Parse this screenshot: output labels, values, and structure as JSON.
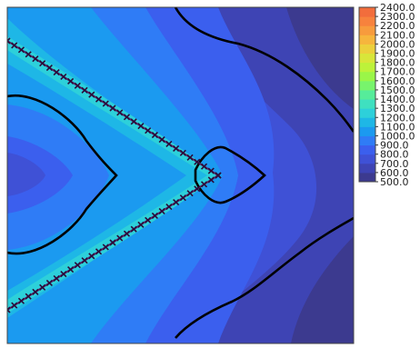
{
  "chart_data": {
    "type": "heatmap",
    "title": "",
    "xlabel": "",
    "ylabel": "",
    "axis_ticks_visible": false,
    "colorbar": {
      "placement": "right",
      "range": [
        500.0,
        2400.0
      ],
      "step": 100.0,
      "tick_labels": [
        "2400.0",
        "2300.0",
        "2200.0",
        "2100.0",
        "2000.0",
        "1900.0",
        "1800.0",
        "1700.0",
        "1600.0",
        "1500.0",
        "1400.0",
        "1300.0",
        "1200.0",
        "1100.0",
        "1000.0",
        "900.0",
        "800.0",
        "700.0",
        "600.0",
        "500.0"
      ],
      "colors": [
        "#3c3a8f",
        "#3e44b4",
        "#3f51d6",
        "#3b5fee",
        "#2f7cf6",
        "#1b9af0",
        "#1eb7e6",
        "#2dd0da",
        "#3fe0c0",
        "#56ec9a",
        "#78f46c",
        "#9af648",
        "#bdf23a",
        "#d8e63a",
        "#ecd03c",
        "#f6b53d",
        "#f79b3d",
        "#f7823d",
        "#f26d3c"
      ]
    },
    "field_description_levels": [
      {
        "band": "600-700",
        "region": "right edge lobes (top-right, bottom-right)"
      },
      {
        "band": "700-800",
        "region": "right side"
      },
      {
        "band": "800-900",
        "region": "center-right"
      },
      {
        "band": "900-1000",
        "region": "inner V interior and outer bands"
      },
      {
        "band": "1000-1100",
        "region": "around V arms"
      },
      {
        "band": "1100-1200",
        "region": "near V arms"
      },
      {
        "band": "1200-1300",
        "region": "along V-shaped ridge"
      }
    ],
    "overlays": {
      "ridge_marker_line": "x-markers along a V-shaped path from top-left and bottom-left converging at the tip near mid-height",
      "contour_lines": "black contour lines: left lobe, small diamond at tip, and two right-side curves"
    }
  }
}
